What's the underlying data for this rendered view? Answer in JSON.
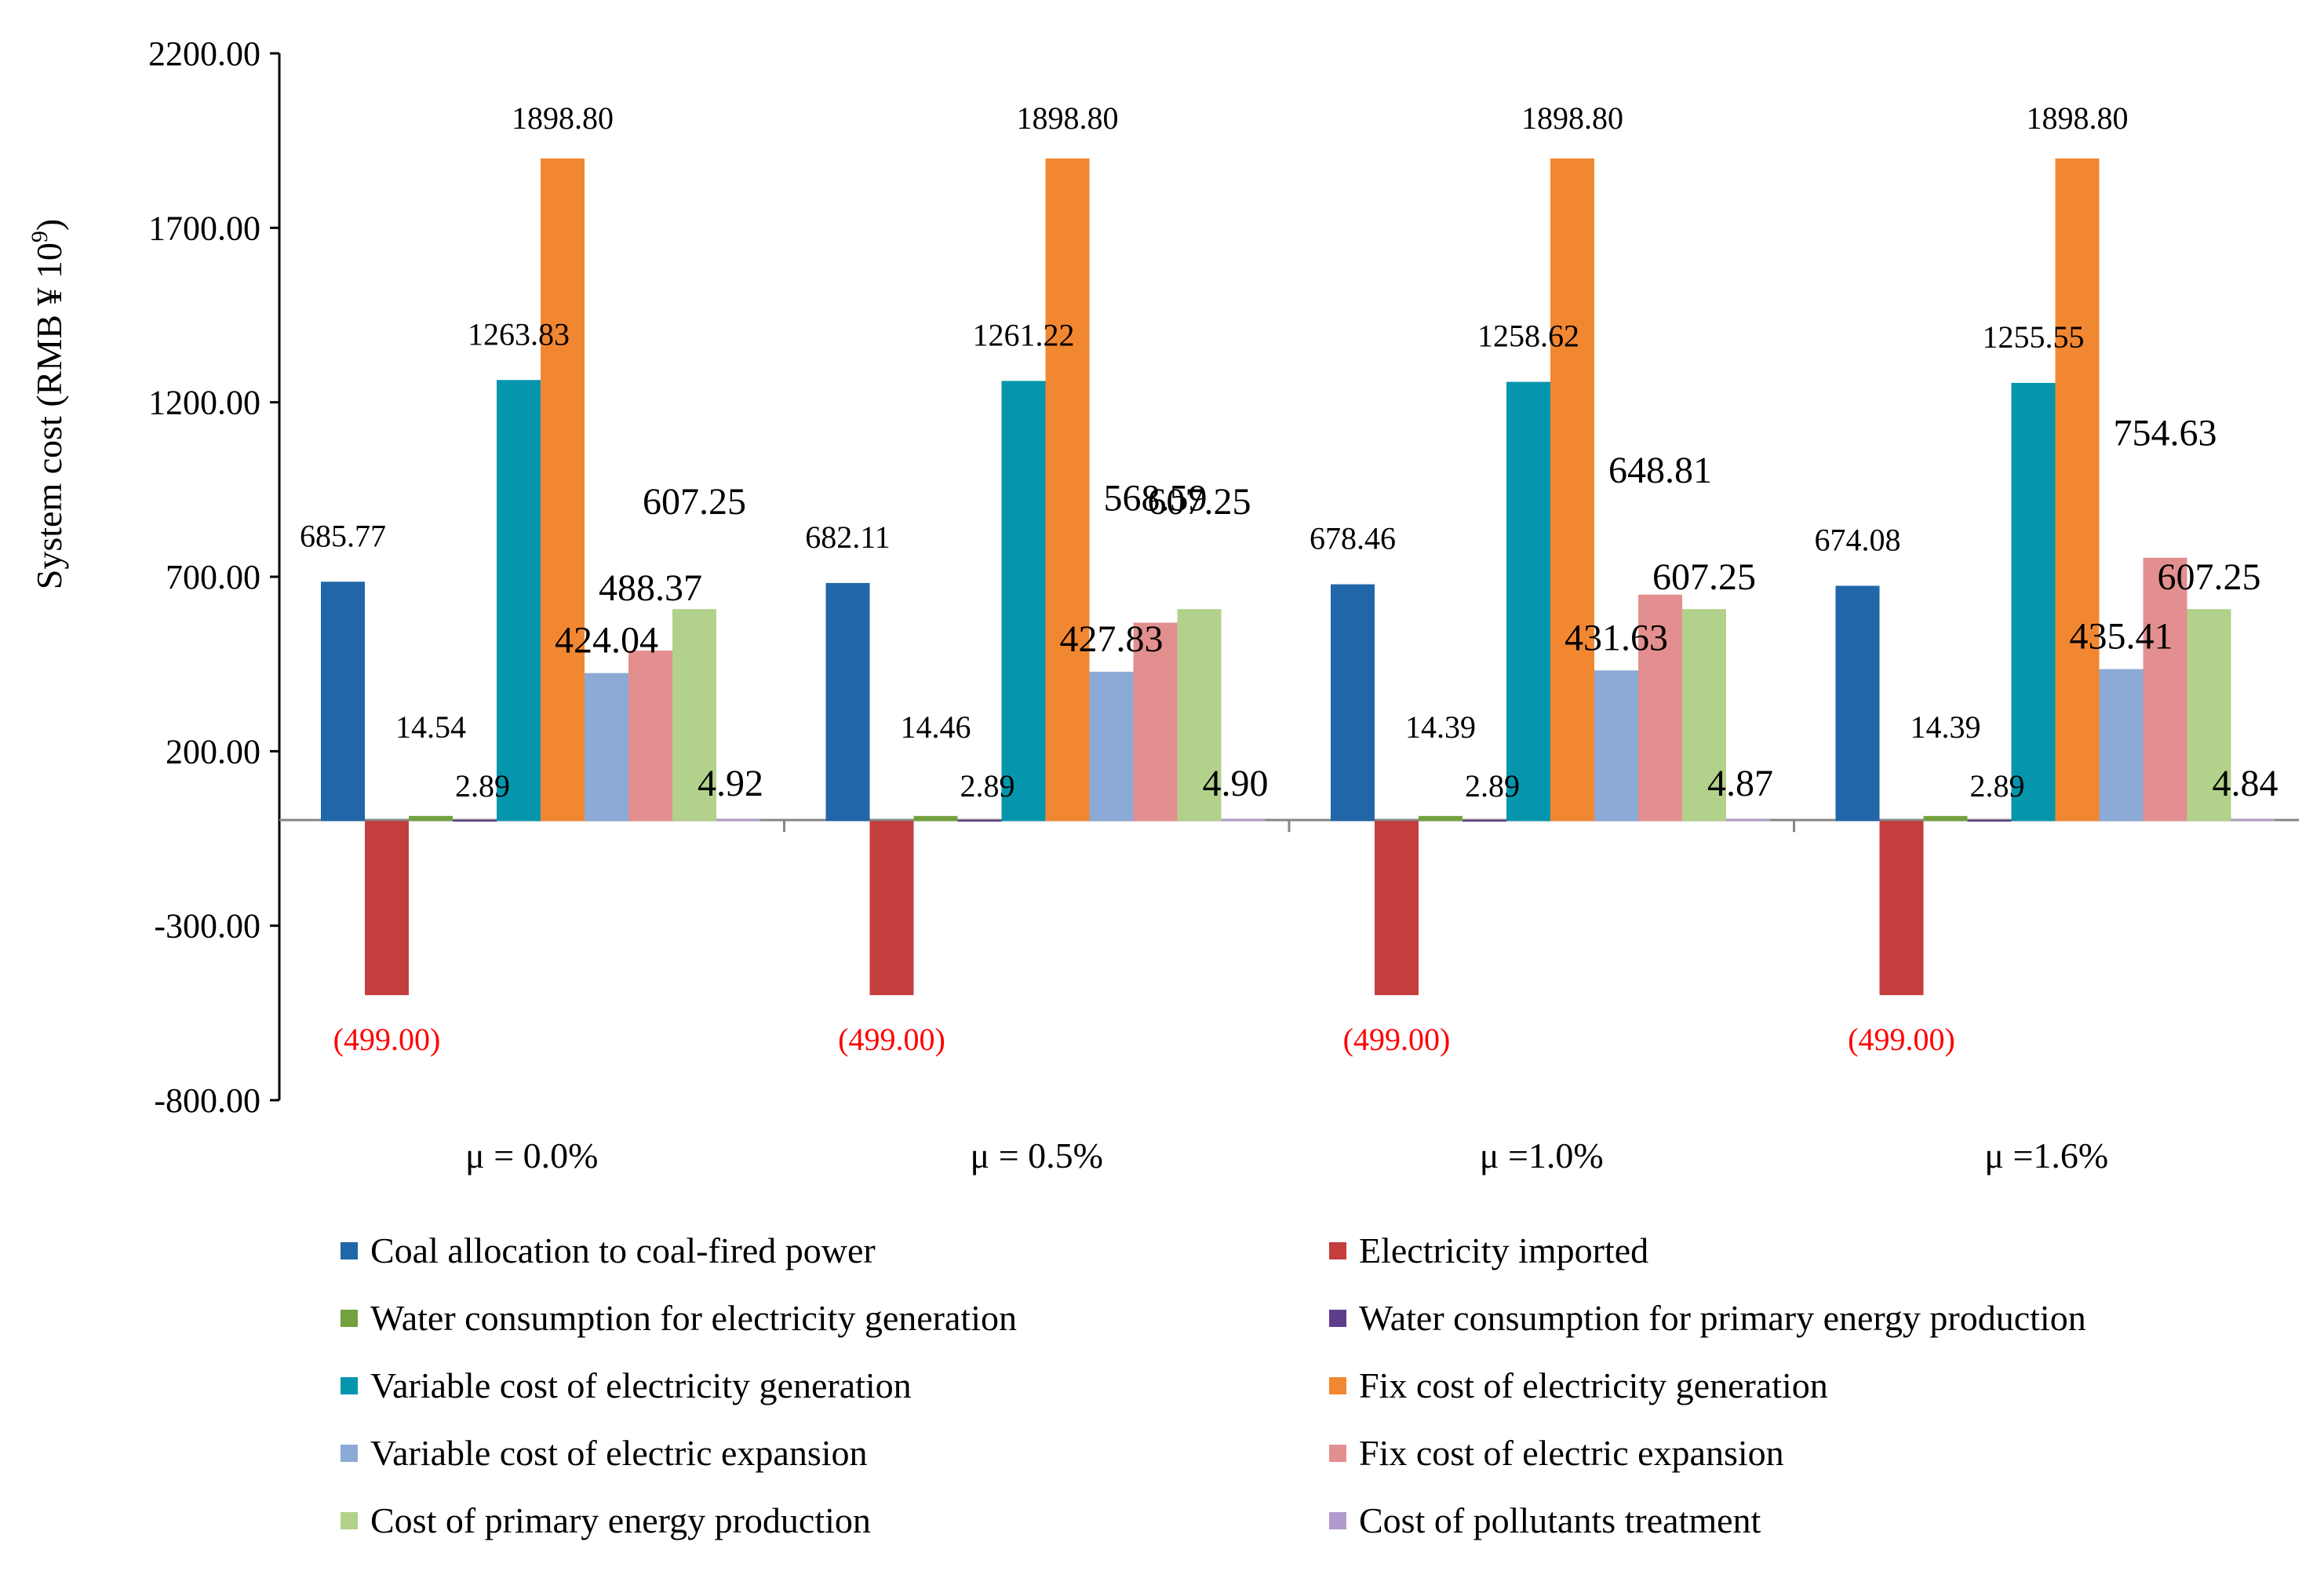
{
  "chart_data": {
    "type": "bar",
    "ylabel": "System cost (RMB ¥ 10",
    "ylabel_sup": "9",
    "ylabel_close": ")",
    "ylim": [
      -800,
      2200
    ],
    "yticks": [
      2200,
      1700,
      1200,
      700,
      200,
      -300,
      -800
    ],
    "ytick_labels": [
      "2200.00",
      "1700.00",
      "1200.00",
      "700.00",
      "200.00",
      "-300.00",
      "-800.00"
    ],
    "categories": [
      "μ = 0.0%",
      "μ = 0.5%",
      "μ =1.0%",
      "μ =1.6%"
    ],
    "legend_position": "bottom",
    "series": [
      {
        "name": "Coal allocation to coal-fired power",
        "color": "#2166a8",
        "values": [
          685.77,
          682.11,
          678.46,
          674.08
        ],
        "labels": [
          "685.77",
          "682.11",
          "678.46",
          "674.08"
        ]
      },
      {
        "name": "Electricity imported",
        "color": "#c43e3e",
        "values": [
          -499.0,
          -499.0,
          -499.0,
          -499.0
        ],
        "labels": [
          "(499.00)",
          "(499.00)",
          "(499.00)",
          "(499.00)"
        ]
      },
      {
        "name": "Water consumption for electricity generation",
        "color": "#73a13f",
        "values": [
          14.54,
          14.46,
          14.39,
          14.39
        ],
        "labels": [
          "14.54",
          "14.46",
          "14.39",
          "14.39"
        ]
      },
      {
        "name": "Water consumption for primary energy production",
        "color": "#5e3e8a",
        "values": [
          2.89,
          2.89,
          2.89,
          2.89
        ],
        "labels": [
          "2.89",
          "2.89",
          "2.89",
          "2.89"
        ]
      },
      {
        "name": "Variable cost of electricity generation",
        "color": "#0596ad",
        "values": [
          1263.83,
          1261.22,
          1258.62,
          1255.55
        ],
        "labels": [
          "1263.83",
          "1261.22",
          "1258.62",
          "1255.55"
        ]
      },
      {
        "name": "Fix cost of electricity generation",
        "color": "#f28732",
        "values": [
          1898.8,
          1898.8,
          1898.8,
          1898.8
        ],
        "labels": [
          "1898.80",
          "1898.80",
          "1898.80",
          "1898.80"
        ]
      },
      {
        "name": "Variable cost of electric expansion",
        "color": "#8caad6",
        "values": [
          424.04,
          427.83,
          431.63,
          435.41
        ],
        "labels": [
          "424.04",
          "427.83",
          "431.63",
          "435.41"
        ]
      },
      {
        "name": "Fix cost of electric expansion",
        "color": "#e38f8f",
        "values": [
          488.37,
          568.59,
          648.81,
          754.63
        ],
        "labels": [
          "488.37",
          "568.59",
          "648.81",
          "754.63"
        ]
      },
      {
        "name": "Cost of primary energy production",
        "color": "#b2d18a",
        "values": [
          607.25,
          607.25,
          607.25,
          607.25
        ],
        "labels": [
          "607.25",
          "607.25",
          "607.25",
          "607.25"
        ]
      },
      {
        "name": "Cost of pollutants treatment",
        "color": "#b09bcc",
        "values": [
          4.92,
          4.9,
          4.87,
          4.84
        ],
        "labels": [
          "4.92",
          "4.90",
          "4.87",
          "4.84"
        ]
      }
    ]
  }
}
